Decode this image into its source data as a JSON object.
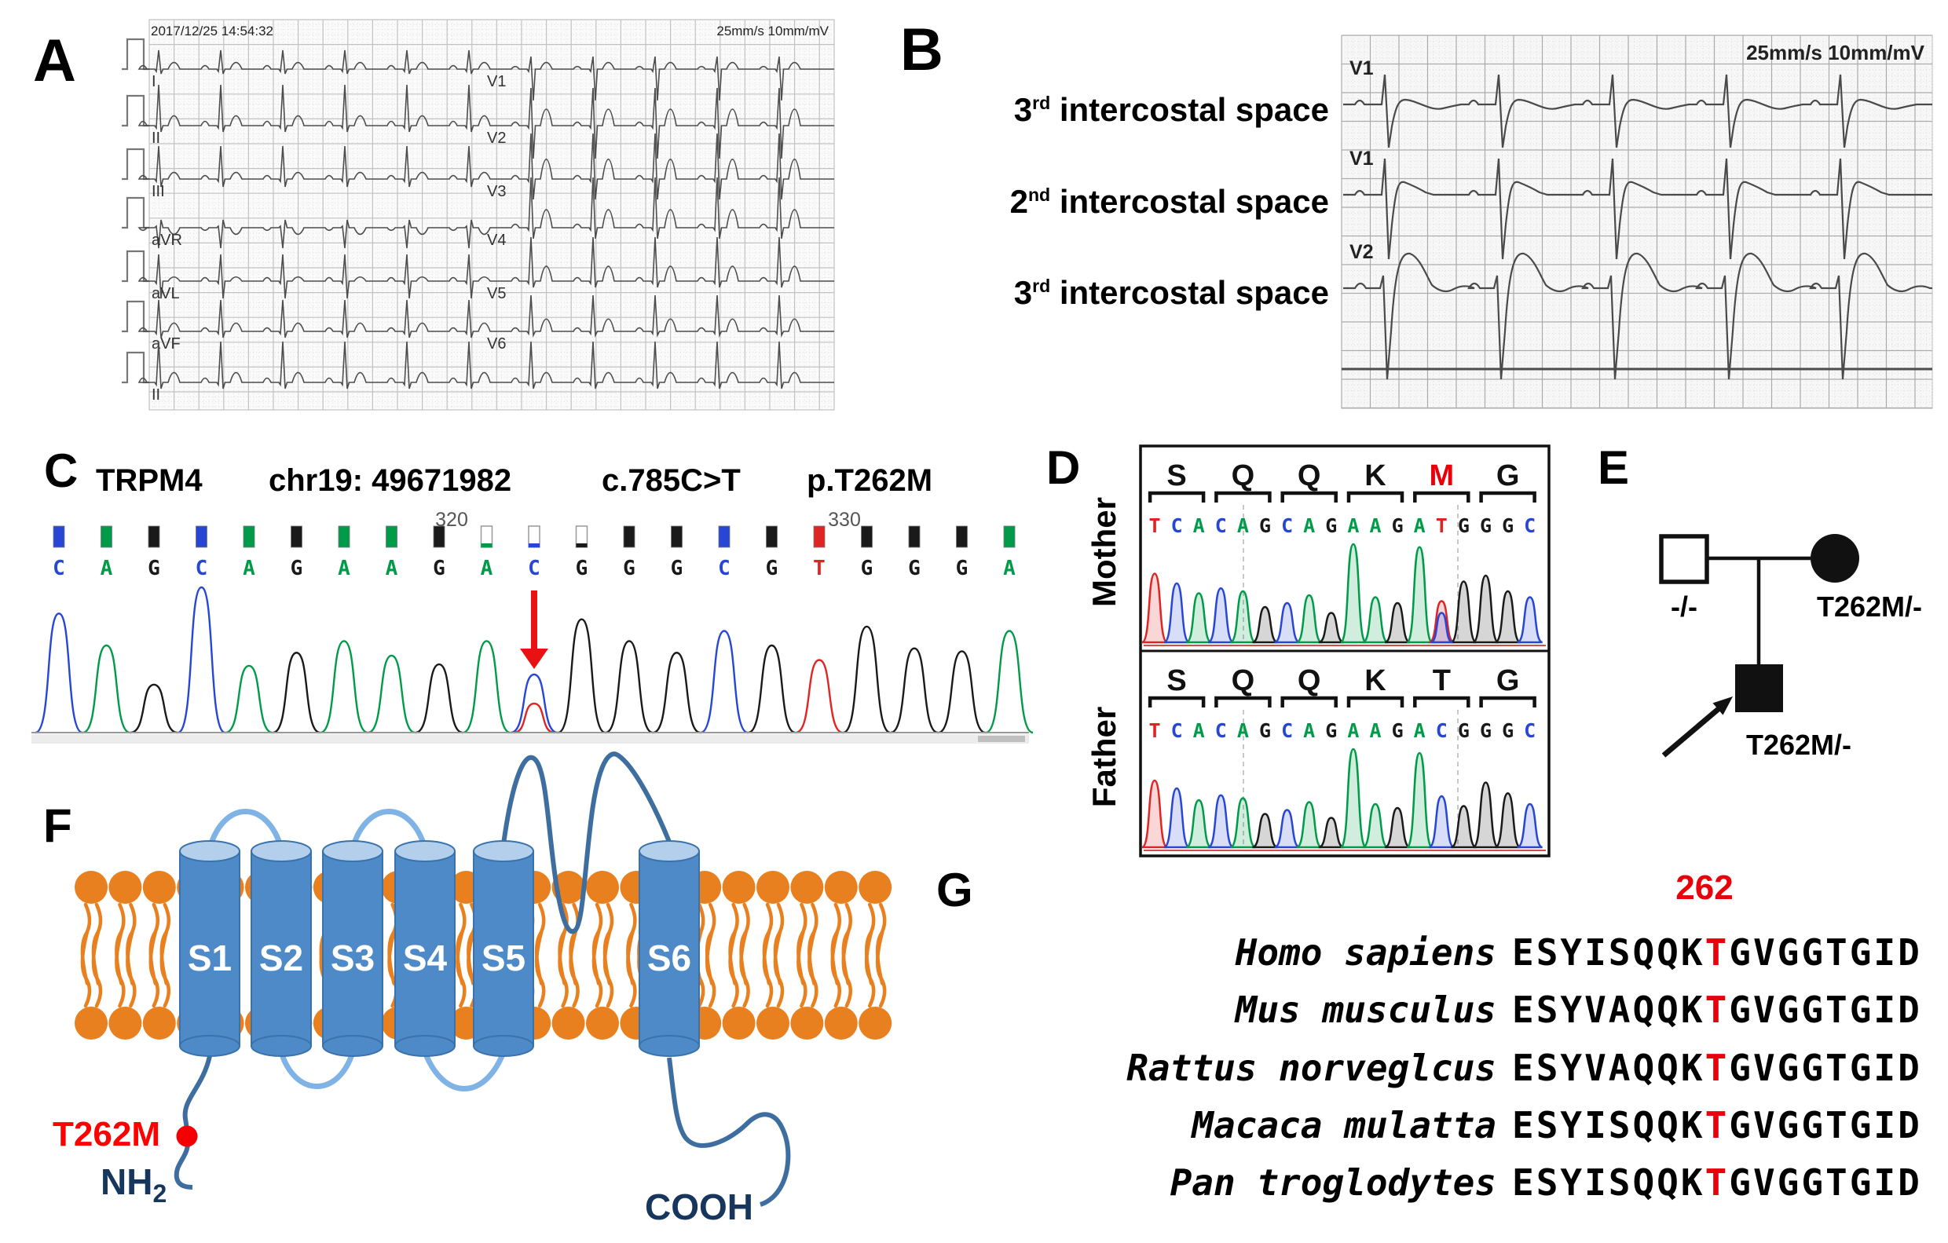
{
  "colors": {
    "baseA": "#009B48",
    "baseC": "#2746D6",
    "baseG": "#1a1a1a",
    "baseT": "#E02424",
    "accent_red": "#EE1111",
    "navy": "#17365D",
    "lipid_orange": "#E8801F",
    "cylinder_blue": "#4E8AC8",
    "cylinder_top": "#B3CFEC",
    "loop_light": "#7FB2E5",
    "loop_dark": "#3E6E9F",
    "trace_gray": "#4d4d4d"
  },
  "panel_a": {
    "label": "A",
    "timestamp": "2017/12/25 14:54:32",
    "calibration": "25mm/s 10mm/mV",
    "limb_leads": [
      "I",
      "II",
      "III",
      "aVR",
      "aVL",
      "aVF"
    ],
    "chest_leads": [
      "V1",
      "V2",
      "V3",
      "V4",
      "V5",
      "V6"
    ],
    "rhythm_lead": "II"
  },
  "panel_b": {
    "label": "B",
    "calibration": "25mm/s 10mm/mV",
    "rows": [
      {
        "ordinal": "3",
        "suffix": "rd",
        "text": " intercostal space",
        "lead": "V1"
      },
      {
        "ordinal": "2",
        "suffix": "nd",
        "text": " intercostal space",
        "lead": "V1"
      },
      {
        "ordinal": "3",
        "suffix": "rd",
        "text": " intercostal space",
        "lead": "V2"
      }
    ]
  },
  "panel_c": {
    "label": "C",
    "title": [
      "TRPM4",
      "chr19: 49671982",
      "c.785C>T",
      "p.T262M"
    ],
    "position_labels": [
      "320",
      "330"
    ],
    "bases": "CAGCAGAAGACGGGCGTGGGA",
    "peak_heights": [
      0.82,
      0.6,
      0.33,
      1.0,
      0.46,
      0.55,
      0.63,
      0.53,
      0.47,
      0.63,
      0.4,
      0.78,
      0.63,
      0.55,
      0.7,
      0.6,
      0.5,
      0.73,
      0.58,
      0.56,
      0.7
    ],
    "het": {
      "index": 10,
      "secondary_base": "T",
      "secondary_height": 0.2
    },
    "low_quality_indices": [
      9,
      10,
      11
    ]
  },
  "panel_d": {
    "label": "D",
    "sections": [
      {
        "name": "Mother",
        "amino_acids": [
          "S",
          "Q",
          "Q",
          "K",
          "M",
          "G"
        ],
        "highlight_aa_index": 4,
        "sequence": "TCACAGCAGAAGATGGGC",
        "peak_heights": [
          0.7,
          0.6,
          0.5,
          0.55,
          0.52,
          0.36,
          0.4,
          0.48,
          0.3,
          1.0,
          0.46,
          0.4,
          0.97,
          0.42,
          0.62,
          0.68,
          0.52,
          0.46
        ],
        "het_overlay": {
          "index": 13,
          "base": "C",
          "height": 0.3
        }
      },
      {
        "name": "Father",
        "amino_acids": [
          "S",
          "Q",
          "Q",
          "K",
          "T",
          "G"
        ],
        "highlight_aa_index": -1,
        "sequence": "TCACAGCAGAAGACGGGC",
        "peak_heights": [
          0.68,
          0.6,
          0.48,
          0.53,
          0.5,
          0.34,
          0.38,
          0.46,
          0.3,
          1.0,
          0.44,
          0.4,
          0.96,
          0.52,
          0.42,
          0.66,
          0.55,
          0.44
        ]
      }
    ]
  },
  "panel_e": {
    "label": "E",
    "father_genotype": "-/-",
    "mother_genotype": "T262M/-",
    "proband_genotype": "T262M/-"
  },
  "panel_f": {
    "label": "F",
    "segments": [
      "S1",
      "S2",
      "S3",
      "S4",
      "S5",
      "S6"
    ],
    "mutation_label": "T262M",
    "n_terminus": "NH",
    "n_terminus_sub": "2",
    "c_terminus": "COOH"
  },
  "panel_g": {
    "label": "G",
    "residue_number": "262",
    "rows": [
      {
        "species": "Homo sapiens",
        "pre": "ESYISQQK",
        "mut": "T",
        "post": "GVGGTGID"
      },
      {
        "species": "Mus musculus",
        "pre": "ESYVAQQK",
        "mut": "T",
        "post": "GVGGTGID"
      },
      {
        "species": "Rattus norveglcus",
        "pre": "ESYVAQQK",
        "mut": "T",
        "post": "GVGGTGID"
      },
      {
        "species": "Macaca mulatta",
        "pre": "ESYISQQK",
        "mut": "T",
        "post": "GVGGTGID"
      },
      {
        "species": "Pan troglodytes",
        "pre": "ESYISQQK",
        "mut": "T",
        "post": "GVGGTGID"
      }
    ]
  }
}
